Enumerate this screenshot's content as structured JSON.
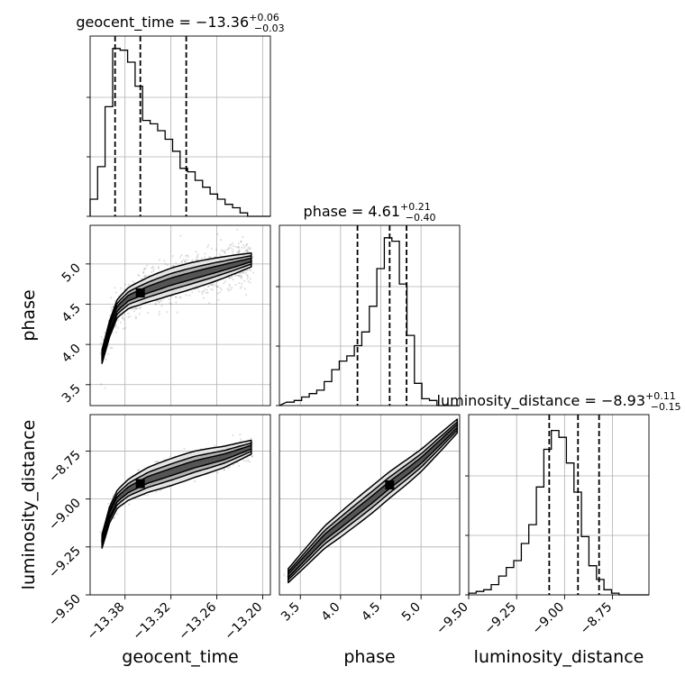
{
  "chart_data": {
    "type": "scatter",
    "layout": "corner",
    "params": [
      "geocent_time",
      "phase",
      "luminosity_distance"
    ],
    "axis_labels": {
      "x": [
        "geocent_time",
        "phase",
        "luminosity_distance"
      ],
      "y_row1": "phase",
      "y_row2": "luminosity_distance"
    },
    "ranges": {
      "geocent_time": [
        -13.4256,
        -13.19
      ],
      "phase": [
        3.24,
        5.48
      ],
      "luminosity_distance": [
        -9.5,
        -8.56
      ]
    },
    "ticks": {
      "geocent_time": [
        {
          "v": -13.38,
          "label": "−13.38"
        },
        {
          "v": -13.32,
          "label": "−13.32"
        },
        {
          "v": -13.26,
          "label": "−13.26"
        },
        {
          "v": -13.2,
          "label": "−13.20"
        }
      ],
      "phase": [
        {
          "v": 3.5,
          "label": "3.5"
        },
        {
          "v": 4.0,
          "label": "4.0"
        },
        {
          "v": 4.5,
          "label": "4.5"
        },
        {
          "v": 5.0,
          "label": "5.0"
        }
      ],
      "luminosity_distance": [
        {
          "v": -9.5,
          "label": "−9.50"
        },
        {
          "v": -9.25,
          "label": "−9.25"
        },
        {
          "v": -9.0,
          "label": "−9.00"
        },
        {
          "v": -8.75,
          "label": "−8.75"
        }
      ]
    },
    "titles": [
      {
        "param": "geocent_time",
        "label": "geocent_time = ",
        "median": "−13.36",
        "plus": "+0.06",
        "minus": "−0.03"
      },
      {
        "param": "phase",
        "label": "phase = ",
        "median": "4.61",
        "plus": "+0.21",
        "minus": "−0.40"
      },
      {
        "param": "luminosity_distance",
        "label": "luminosity_distance = ",
        "median": "−8.93",
        "plus": "+0.11",
        "minus": "−0.15"
      }
    ],
    "quantiles": {
      "geocent_time": [
        -13.393,
        -13.36,
        -13.3
      ],
      "phase": [
        4.21,
        4.61,
        4.82
      ],
      "luminosity_distance": [
        -9.08,
        -8.93,
        -8.82
      ]
    },
    "histograms": {
      "geocent_time": {
        "edges_start": -13.4256,
        "bin_width": 0.0098,
        "counts": [
          0.1,
          0.29,
          0.64,
          0.98,
          0.97,
          0.9,
          0.76,
          0.56,
          0.54,
          0.5,
          0.45,
          0.38,
          0.28,
          0.26,
          0.21,
          0.17,
          0.13,
          0.1,
          0.07,
          0.05,
          0.02,
          0.0,
          0.0,
          0.0
        ]
      },
      "phase": {
        "edges_start": 3.33,
        "bin_width": 0.0934,
        "counts": [
          0.02,
          0.03,
          0.05,
          0.07,
          0.09,
          0.14,
          0.21,
          0.26,
          0.29,
          0.35,
          0.43,
          0.58,
          0.8,
          0.98,
          0.96,
          0.71,
          0.41,
          0.13,
          0.04,
          0.03,
          0.0,
          0.0,
          0.0
        ]
      },
      "luminosity_distance": {
        "edges_start": -9.5,
        "bin_width": 0.0392,
        "counts": [
          0.01,
          0.02,
          0.03,
          0.06,
          0.11,
          0.16,
          0.2,
          0.3,
          0.41,
          0.63,
          0.85,
          0.96,
          0.92,
          0.77,
          0.6,
          0.34,
          0.17,
          0.09,
          0.03,
          0.01,
          0.0,
          0.0,
          0.0,
          0.0
        ]
      }
    },
    "contour_ridge": {
      "geocent_time_vs_phase": [
        [
          -13.41,
          3.85
        ],
        [
          -13.4,
          4.2
        ],
        [
          -13.39,
          4.45
        ],
        [
          -13.375,
          4.58
        ],
        [
          -13.35,
          4.68
        ],
        [
          -13.32,
          4.78
        ],
        [
          -13.29,
          4.86
        ],
        [
          -13.25,
          4.96
        ],
        [
          -13.215,
          5.05
        ]
      ],
      "geocent_time_vs_luminosity_distance": [
        [
          -13.41,
          -9.22
        ],
        [
          -13.4,
          -9.08
        ],
        [
          -13.39,
          -9.0
        ],
        [
          -13.375,
          -8.95
        ],
        [
          -13.35,
          -8.9
        ],
        [
          -13.32,
          -8.86
        ],
        [
          -13.29,
          -8.82
        ],
        [
          -13.25,
          -8.78
        ],
        [
          -13.215,
          -8.73
        ]
      ],
      "phase_vs_luminosity_distance": [
        [
          3.35,
          -9.4
        ],
        [
          3.8,
          -9.2
        ],
        [
          4.1,
          -9.1
        ],
        [
          4.4,
          -9.0
        ],
        [
          4.6,
          -8.93
        ],
        [
          4.85,
          -8.85
        ],
        [
          5.0,
          -8.8
        ],
        [
          5.25,
          -8.7
        ],
        [
          5.45,
          -8.62
        ]
      ]
    }
  }
}
